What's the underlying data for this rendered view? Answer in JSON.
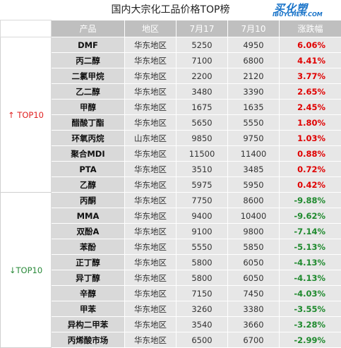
{
  "header": {
    "title": "国内大宗化工品价格TOP榜",
    "logo_cn": "买化塑",
    "logo_en": "IBUYCHEM.COM"
  },
  "table": {
    "columns": [
      "产品",
      "地区",
      "7月17",
      "7月10",
      "涨跌幅"
    ],
    "groups": [
      {
        "label": "↑ TOP10",
        "direction": "up",
        "rows": [
          [
            "DMF",
            "华东地区",
            "5250",
            "4950",
            "6.06%"
          ],
          [
            "丙二醇",
            "华东地区",
            "7100",
            "6800",
            "4.41%"
          ],
          [
            "二氯甲烷",
            "华东地区",
            "2200",
            "2120",
            "3.77%"
          ],
          [
            "乙二醇",
            "华东地区",
            "3480",
            "3390",
            "2.65%"
          ],
          [
            "甲醇",
            "华东地区",
            "1675",
            "1635",
            "2.45%"
          ],
          [
            "醋酸丁酯",
            "华东地区",
            "5650",
            "5550",
            "1.80%"
          ],
          [
            "环氧丙烷",
            "山东地区",
            "9850",
            "9750",
            "1.03%"
          ],
          [
            "聚合MDI",
            "华东地区",
            "11500",
            "11400",
            "0.88%"
          ],
          [
            "PTA",
            "华东地区",
            "3510",
            "3485",
            "0.72%"
          ],
          [
            "乙醇",
            "华东地区",
            "5975",
            "5950",
            "0.42%"
          ]
        ]
      },
      {
        "label": "↓TOP10",
        "direction": "down",
        "rows": [
          [
            "丙酮",
            "华东地区",
            "7750",
            "8600",
            "-9.88%"
          ],
          [
            "MMA",
            "华东地区",
            "9400",
            "10400",
            "-9.62%"
          ],
          [
            "双酚A",
            "华东地区",
            "9100",
            "9800",
            "-7.14%"
          ],
          [
            "苯酚",
            "华东地区",
            "5550",
            "5850",
            "-5.13%"
          ],
          [
            "正丁醇",
            "华东地区",
            "5800",
            "6050",
            "-4.13%"
          ],
          [
            "异丁醇",
            "华东地区",
            "5800",
            "6050",
            "-4.13%"
          ],
          [
            "辛醇",
            "华东地区",
            "7150",
            "7450",
            "-4.03%"
          ],
          [
            "甲苯",
            "华东地区",
            "3260",
            "3380",
            "-3.55%"
          ],
          [
            "异构二甲苯",
            "华东地区",
            "3540",
            "3660",
            "-3.28%"
          ],
          [
            "丙烯酸市场",
            "华东地区",
            "6500",
            "6700",
            "-2.99%"
          ]
        ]
      }
    ]
  },
  "colors": {
    "up": "#e00000",
    "down": "#1f8a2e",
    "header_bg": "#bfbfbf",
    "logo": "#1a74c9"
  }
}
